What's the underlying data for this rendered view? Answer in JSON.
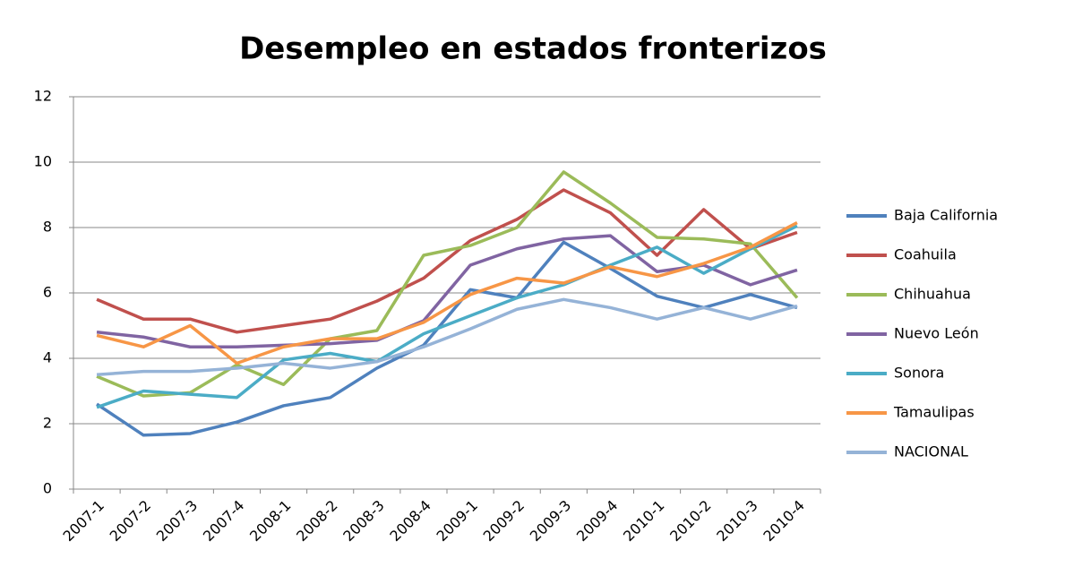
{
  "chart_data": {
    "type": "line",
    "title": "Desempleo en estados fronterizos",
    "categories": [
      "2007-1",
      "2007-2",
      "2007-3",
      "2007-4",
      "2008-1",
      "2008-2",
      "2008-3",
      "2008-4",
      "2009-1",
      "2009-2",
      "2009-3",
      "2009-4",
      "2010-1",
      "2010-2",
      "2010-3",
      "2010-4"
    ],
    "series": [
      {
        "name": "Baja California",
        "color": "#4F81BD",
        "values": [
          2.6,
          1.65,
          1.7,
          2.05,
          2.55,
          2.8,
          3.7,
          4.4,
          6.1,
          5.85,
          7.55,
          6.75,
          5.9,
          5.55,
          5.95,
          5.55
        ]
      },
      {
        "name": "Coahuila",
        "color": "#C0504D",
        "values": [
          5.8,
          5.2,
          5.2,
          4.8,
          5.0,
          5.2,
          5.75,
          6.45,
          7.6,
          8.25,
          9.15,
          8.45,
          7.15,
          8.55,
          7.35,
          7.85
        ]
      },
      {
        "name": "Chihuahua",
        "color": "#9BBB59",
        "values": [
          3.45,
          2.85,
          2.95,
          3.8,
          3.2,
          4.6,
          4.85,
          7.15,
          7.45,
          8.0,
          9.7,
          8.75,
          7.7,
          7.65,
          7.5,
          5.85
        ]
      },
      {
        "name": "Nuevo León",
        "color": "#8064A2",
        "values": [
          4.8,
          4.65,
          4.35,
          4.35,
          4.4,
          4.45,
          4.55,
          5.15,
          6.85,
          7.35,
          7.65,
          7.75,
          6.65,
          6.85,
          6.25,
          6.7
        ]
      },
      {
        "name": "Sonora",
        "color": "#4BACC6",
        "values": [
          2.5,
          3.0,
          2.9,
          2.8,
          3.95,
          4.15,
          3.9,
          4.75,
          5.3,
          5.85,
          6.25,
          6.85,
          7.4,
          6.6,
          7.35,
          8.05
        ]
      },
      {
        "name": "Tamaulipas",
        "color": "#F79646",
        "values": [
          4.7,
          4.35,
          5.0,
          3.85,
          4.35,
          4.6,
          4.6,
          5.1,
          5.95,
          6.45,
          6.3,
          6.8,
          6.5,
          6.9,
          7.4,
          8.15
        ]
      },
      {
        "name": "NACIONAL",
        "color": "#95B3D7",
        "values": [
          3.5,
          3.6,
          3.6,
          3.7,
          3.85,
          3.7,
          3.9,
          4.35,
          4.9,
          5.5,
          5.8,
          5.55,
          5.2,
          5.55,
          5.2,
          5.6
        ]
      }
    ],
    "ylim": [
      0,
      12
    ],
    "yticks": [
      0,
      2,
      4,
      6,
      8,
      10,
      12
    ],
    "grid": true,
    "legend": "right"
  }
}
